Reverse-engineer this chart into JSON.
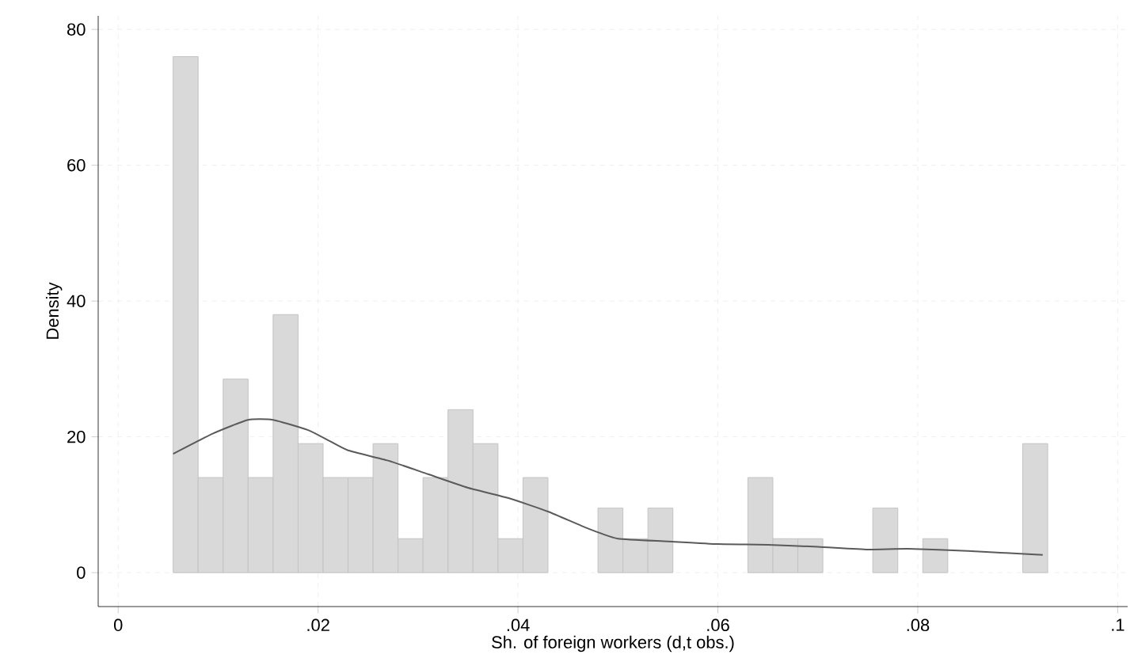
{
  "chart_data": {
    "type": "histogram",
    "xlabel": "Sh. of foreign workers (d,t obs.)",
    "ylabel": "Density",
    "color": "#d9d9d9",
    "bins": [
      0.0055,
      0.008,
      0.0105,
      0.013,
      0.0155,
      0.018,
      0.0205,
      0.023,
      0.0255,
      0.028,
      0.0305,
      0.033,
      0.0355,
      0.038,
      0.0405,
      0.043,
      0.0455,
      0.048,
      0.0505,
      0.053,
      0.0555,
      0.058,
      0.0605,
      0.063,
      0.0655,
      0.068,
      0.0705,
      0.073,
      0.0755,
      0.078,
      0.0805,
      0.083,
      0.0855,
      0.088,
      0.0905,
      0.093
    ],
    "values": [
      76,
      14,
      28.5,
      14,
      38,
      19,
      14,
      14,
      19,
      5,
      14,
      24,
      19,
      5,
      14,
      0,
      0,
      9.5,
      5,
      9.5,
      0,
      0,
      0,
      14,
      5,
      5,
      0,
      0,
      9.5,
      0,
      5,
      0,
      0,
      0,
      19
    ],
    "series": [
      {
        "type": "line",
        "color": "#5a5a5a",
        "x": [
          0.0055,
          0.0095,
          0.013,
          0.0155,
          0.019,
          0.021,
          0.023,
          0.027,
          0.031,
          0.035,
          0.039,
          0.043,
          0.047,
          0.05,
          0.055,
          0.06,
          0.065,
          0.07,
          0.075,
          0.079,
          0.085,
          0.0925
        ],
        "values": [
          17.5,
          20.5,
          22.5,
          22.5,
          21,
          19.5,
          18,
          16.5,
          14.5,
          12.5,
          11,
          9,
          6.5,
          5,
          4.6,
          4.2,
          4.1,
          3.8,
          3.4,
          3.5,
          3.2,
          2.6
        ]
      }
    ],
    "xlim": [
      -0.002,
      0.101
    ],
    "ylim": [
      -5,
      82
    ],
    "xticks": [
      0,
      {
        "value": 0.02,
        "label": ".02"
      },
      {
        "value": 0.04,
        "label": ".04"
      },
      {
        "value": 0.06,
        "label": ".06"
      },
      {
        "value": 0.08,
        "label": ".08"
      },
      {
        "value": 0.1,
        "label": ".1"
      }
    ],
    "yticks": [
      0,
      20,
      40,
      60,
      80
    ],
    "grid": true
  }
}
